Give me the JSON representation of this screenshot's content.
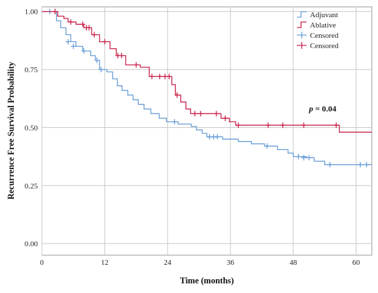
{
  "chart_data": {
    "type": "line",
    "subtype": "kaplan-meier step curve",
    "xlabel": "Time (months)",
    "ylabel": "Recurrence Free Survival Probability",
    "xlim": [
      0,
      63
    ],
    "ylim": [
      -0.05,
      1.02
    ],
    "xticks": [
      0,
      12,
      24,
      36,
      48,
      60
    ],
    "yticks": [
      0.0,
      0.25,
      0.5,
      0.75,
      1.0
    ],
    "xtick_labels": [
      "0",
      "12",
      "24",
      "36",
      "48",
      "60"
    ],
    "ytick_labels": [
      "0.00",
      "0.25",
      "0.50",
      "0.75",
      "1.00"
    ],
    "grid": true,
    "legend_position": "top-right",
    "legend": [
      {
        "label": "Adjuvant",
        "kind": "step-line",
        "color": "#6a9fd8"
      },
      {
        "label": "Ablative",
        "kind": "step-line",
        "color": "#c8234a"
      },
      {
        "label": "Censored",
        "kind": "censor-mark",
        "color": "#6a9fd8"
      },
      {
        "label": "Censored",
        "kind": "censor-mark",
        "color": "#c8234a"
      }
    ],
    "annotation": {
      "prefix": "p",
      "text": " = 0.04",
      "x": 51,
      "y": 0.57
    },
    "series": [
      {
        "name": "Adjuvant",
        "color": "#6a9fd8",
        "steps": [
          [
            0,
            1.0
          ],
          [
            2.8,
            0.96
          ],
          [
            3.6,
            0.93
          ],
          [
            4.6,
            0.9
          ],
          [
            5.5,
            0.87
          ],
          [
            6.5,
            0.85
          ],
          [
            7.8,
            0.83
          ],
          [
            9.3,
            0.81
          ],
          [
            10.2,
            0.79
          ],
          [
            11.0,
            0.75
          ],
          [
            12.4,
            0.74
          ],
          [
            13.5,
            0.71
          ],
          [
            14.4,
            0.68
          ],
          [
            15.3,
            0.66
          ],
          [
            16.4,
            0.64
          ],
          [
            17.4,
            0.62
          ],
          [
            18.4,
            0.6
          ],
          [
            19.5,
            0.58
          ],
          [
            20.8,
            0.56
          ],
          [
            22.4,
            0.54
          ],
          [
            23.8,
            0.525
          ],
          [
            26.0,
            0.515
          ],
          [
            28.5,
            0.505
          ],
          [
            29.5,
            0.49
          ],
          [
            30.6,
            0.475
          ],
          [
            31.5,
            0.46
          ],
          [
            34.5,
            0.45
          ],
          [
            37.5,
            0.44
          ],
          [
            40.0,
            0.43
          ],
          [
            42.5,
            0.42
          ],
          [
            45.0,
            0.405
          ],
          [
            47.0,
            0.39
          ],
          [
            48.0,
            0.375
          ],
          [
            50.5,
            0.37
          ],
          [
            52.0,
            0.355
          ],
          [
            54.0,
            0.34
          ],
          [
            63,
            0.34
          ]
        ],
        "censored": [
          [
            1.5,
            1.0
          ],
          [
            5.0,
            0.87
          ],
          [
            6.0,
            0.85
          ],
          [
            8.0,
            0.83
          ],
          [
            10.5,
            0.79
          ],
          [
            11.3,
            0.75
          ],
          [
            25.3,
            0.525
          ],
          [
            32.0,
            0.46
          ],
          [
            32.8,
            0.46
          ],
          [
            33.5,
            0.46
          ],
          [
            43.0,
            0.42
          ],
          [
            49.0,
            0.375
          ],
          [
            50.0,
            0.37
          ],
          [
            51.0,
            0.37
          ],
          [
            55.0,
            0.34
          ],
          [
            60.8,
            0.34
          ],
          [
            62.0,
            0.34
          ]
        ]
      },
      {
        "name": "Ablative",
        "color": "#c8234a",
        "steps": [
          [
            0,
            1.0
          ],
          [
            3.0,
            0.98
          ],
          [
            4.2,
            0.97
          ],
          [
            5.0,
            0.955
          ],
          [
            6.5,
            0.945
          ],
          [
            8.0,
            0.93
          ],
          [
            9.5,
            0.9
          ],
          [
            11.0,
            0.87
          ],
          [
            13.0,
            0.84
          ],
          [
            14.2,
            0.81
          ],
          [
            16.0,
            0.77
          ],
          [
            18.8,
            0.76
          ],
          [
            20.5,
            0.72
          ],
          [
            24.8,
            0.685
          ],
          [
            25.5,
            0.64
          ],
          [
            26.5,
            0.61
          ],
          [
            27.5,
            0.58
          ],
          [
            28.4,
            0.56
          ],
          [
            34.2,
            0.54
          ],
          [
            35.8,
            0.525
          ],
          [
            37.0,
            0.51
          ],
          [
            55.0,
            0.51
          ],
          [
            56.8,
            0.48
          ],
          [
            63,
            0.48
          ]
        ],
        "censored": [
          [
            2.5,
            1.0
          ],
          [
            5.5,
            0.955
          ],
          [
            7.8,
            0.945
          ],
          [
            8.5,
            0.93
          ],
          [
            9.0,
            0.93
          ],
          [
            10.0,
            0.9
          ],
          [
            12.0,
            0.87
          ],
          [
            14.5,
            0.81
          ],
          [
            15.2,
            0.81
          ],
          [
            18.0,
            0.77
          ],
          [
            21.0,
            0.72
          ],
          [
            22.5,
            0.72
          ],
          [
            23.5,
            0.72
          ],
          [
            24.3,
            0.72
          ],
          [
            25.8,
            0.64
          ],
          [
            29.2,
            0.56
          ],
          [
            30.3,
            0.56
          ],
          [
            33.3,
            0.56
          ],
          [
            35.0,
            0.54
          ],
          [
            37.5,
            0.51
          ],
          [
            43.2,
            0.51
          ],
          [
            46.0,
            0.51
          ],
          [
            50.0,
            0.51
          ],
          [
            56.2,
            0.51
          ]
        ]
      }
    ]
  }
}
